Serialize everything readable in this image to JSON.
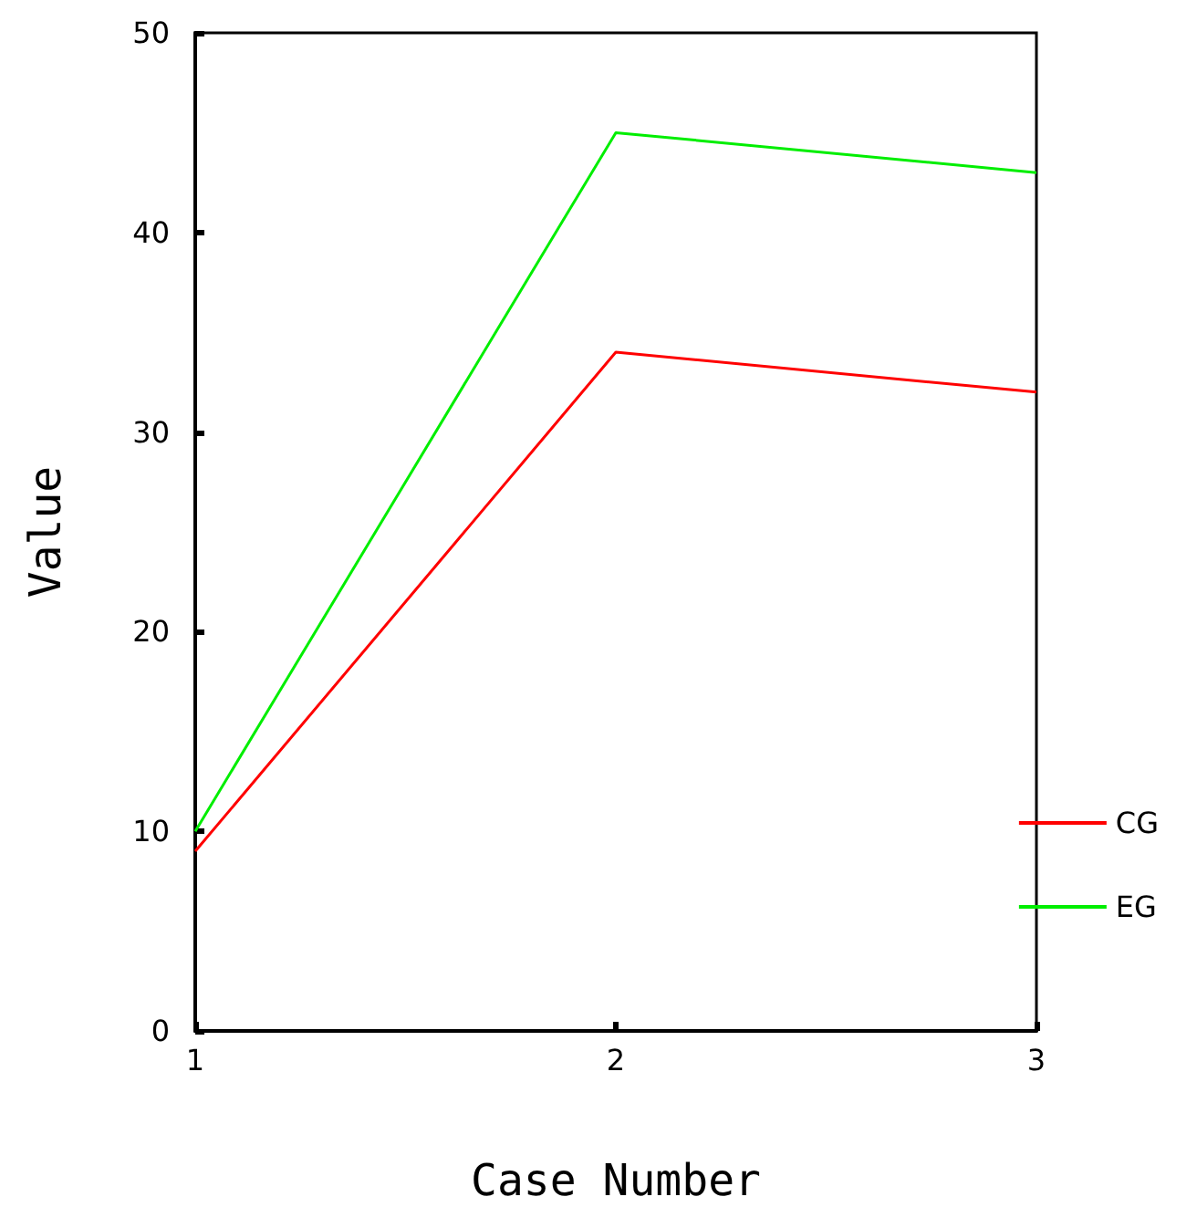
{
  "chart_data": {
    "type": "line",
    "xlabel": "Case Number",
    "ylabel": "Value",
    "x": [
      1,
      2,
      3
    ],
    "xlim": [
      1,
      3
    ],
    "xticks": [
      1,
      2,
      3
    ],
    "ylim": [
      0,
      50
    ],
    "yticks": [
      0,
      10,
      20,
      30,
      40,
      50
    ],
    "series": [
      {
        "name": "CG",
        "color": "#ff0000",
        "values": [
          9,
          34,
          32
        ]
      },
      {
        "name": "EG",
        "color": "#00ee00",
        "values": [
          10,
          45,
          43
        ]
      }
    ],
    "legend": "right",
    "grid": false,
    "marker": "none",
    "line_style": "solid"
  }
}
